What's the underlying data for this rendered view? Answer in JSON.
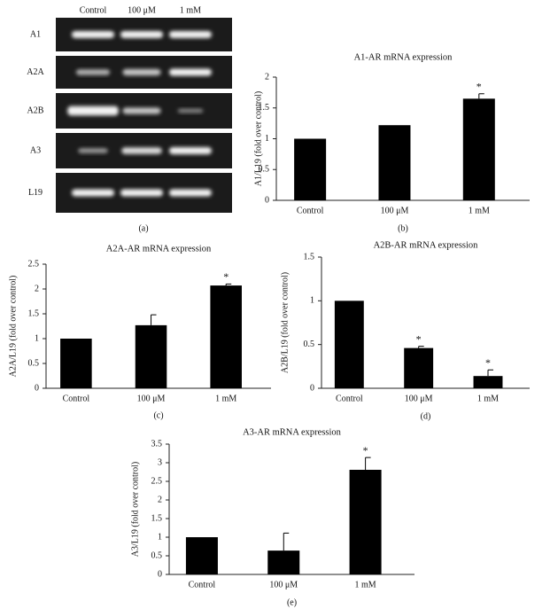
{
  "gel": {
    "columns": [
      "Control",
      "100 μM",
      "1 mM"
    ],
    "rows": [
      "A1",
      "A2A",
      "A2B",
      "A3",
      "L19"
    ],
    "panel_label": "(a)"
  },
  "chart_data": [
    {
      "type": "bar",
      "title": "A1-AR mRNA expression",
      "y_label": "A1/L19 (fold over control)",
      "panel_label": "(b)",
      "categories": [
        "Control",
        "100 μM",
        "1 mM"
      ],
      "values": [
        1.0,
        1.22,
        1.65
      ],
      "errors": [
        null,
        null,
        0.08
      ],
      "annotations": [
        {
          "category": "1 mM",
          "text": "*"
        }
      ],
      "color": "#000000",
      "ylim": [
        0,
        2
      ],
      "yticks": [
        0,
        0.5,
        1,
        1.5,
        2
      ]
    },
    {
      "type": "bar",
      "title": "A2A-AR mRNA expression",
      "y_label": "A2A/L19 (fold over control)",
      "panel_label": "(c)",
      "categories": [
        "Control",
        "100 μM",
        "1 mM"
      ],
      "values": [
        1.0,
        1.27,
        2.07
      ],
      "errors": [
        null,
        0.21,
        0.03
      ],
      "annotations": [
        {
          "category": "1 mM",
          "text": "*"
        }
      ],
      "color": "#000000",
      "ylim": [
        0,
        2.5
      ],
      "yticks": [
        0,
        0.5,
        1,
        1.5,
        2,
        2.5
      ]
    },
    {
      "type": "bar",
      "title": "A2B-AR mRNA expression",
      "y_label": "A2B/L19 (fold over control)",
      "panel_label": "(d)",
      "categories": [
        "Control",
        "100 μM",
        "1 mM"
      ],
      "values": [
        1.0,
        0.46,
        0.14
      ],
      "errors": [
        null,
        0.02,
        0.07
      ],
      "annotations": [
        {
          "category": "100 μM",
          "text": "*"
        },
        {
          "category": "1 mM",
          "text": "*"
        }
      ],
      "color": "#000000",
      "ylim": [
        0,
        1.5
      ],
      "yticks": [
        0,
        0.5,
        1,
        1.5
      ]
    },
    {
      "type": "bar",
      "title": "A3-AR mRNA expression",
      "y_label": "A3/L19 (fold over control)",
      "panel_label": "(e)",
      "categories": [
        "Control",
        "100 μM",
        "1 mM"
      ],
      "values": [
        1.0,
        0.64,
        2.81
      ],
      "errors": [
        null,
        0.47,
        0.33
      ],
      "annotations": [
        {
          "category": "1 mM",
          "text": "*"
        }
      ],
      "color": "#000000",
      "ylim": [
        0,
        3.5
      ],
      "yticks": [
        0,
        0.5,
        1,
        1.5,
        2,
        2.5,
        3,
        3.5
      ]
    }
  ]
}
